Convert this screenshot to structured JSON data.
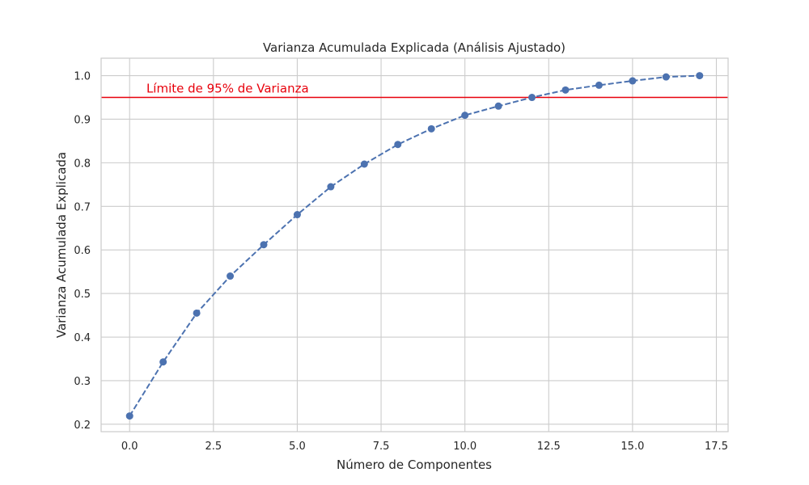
{
  "chart_data": {
    "type": "line",
    "title": "Varianza Acumulada Explicada (Análisis Ajustado)",
    "xlabel": "Número de Componentes",
    "ylabel": "Varianza Acumulada Explicada",
    "xlim": [
      -0.85,
      17.85
    ],
    "ylim": [
      0.183,
      1.04
    ],
    "xticks": [
      0.0,
      2.5,
      5.0,
      7.5,
      10.0,
      12.5,
      15.0,
      17.5
    ],
    "xtick_labels": [
      "0.0",
      "2.5",
      "5.0",
      "7.5",
      "10.0",
      "12.5",
      "15.0",
      "17.5"
    ],
    "yticks": [
      0.2,
      0.3,
      0.4,
      0.5,
      0.6,
      0.7,
      0.8,
      0.9,
      1.0
    ],
    "ytick_labels": [
      "0.2",
      "0.3",
      "0.4",
      "0.5",
      "0.6",
      "0.7",
      "0.8",
      "0.9",
      "1.0"
    ],
    "grid": true,
    "series": [
      {
        "x": [
          0,
          1,
          2,
          3,
          4,
          5,
          6,
          7,
          8,
          9,
          10,
          11,
          12,
          13,
          14,
          15,
          16,
          17
        ],
        "values": [
          0.219,
          0.343,
          0.455,
          0.54,
          0.612,
          0.681,
          0.745,
          0.797,
          0.842,
          0.878,
          0.909,
          0.93,
          0.95,
          0.967,
          0.978,
          0.988,
          0.997,
          1.0
        ],
        "color": "#4c72b0",
        "line_style": "dashed",
        "marker": "circle"
      }
    ],
    "reference_line": {
      "y": 0.95,
      "label": "Límite de 95% de Varianza",
      "color": "#e8000b"
    },
    "colors": {
      "grid": "#cccccc",
      "spine": "#cccccc",
      "text": "#262626",
      "background": "#ffffff"
    }
  }
}
